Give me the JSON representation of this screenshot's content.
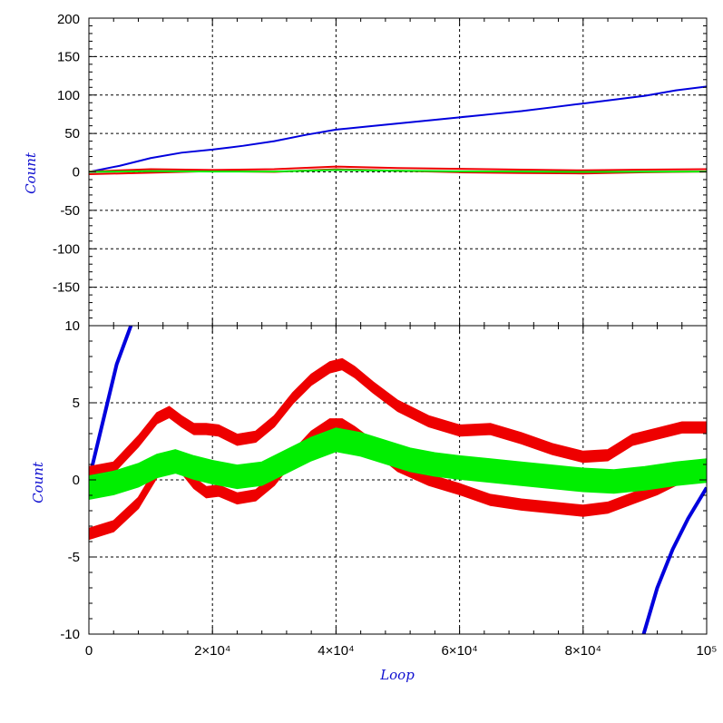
{
  "chart_data": [
    {
      "type": "line",
      "panel": "top",
      "ylabel": "Count",
      "xlabel": "",
      "xlim": [
        0,
        100000
      ],
      "ylim": [
        -200,
        200
      ],
      "yticks": [
        -150,
        -100,
        -50,
        0,
        50,
        100,
        150,
        200
      ],
      "ytick_labels": [
        "-150",
        "-100",
        "-50",
        "0",
        "50",
        "100",
        "150",
        "200"
      ],
      "grid": true,
      "series": [
        {
          "color": "#0000dd",
          "x": [
            0,
            5000,
            10000,
            15000,
            20000,
            25000,
            30000,
            35000,
            40000,
            45000,
            50000,
            55000,
            60000,
            65000,
            70000,
            75000,
            80000,
            85000,
            90000,
            95000,
            100000
          ],
          "y": [
            0,
            8,
            18,
            25,
            29,
            34,
            40,
            48,
            55,
            59,
            63,
            67,
            71,
            75,
            79,
            84,
            89,
            94,
            99,
            106,
            111
          ]
        },
        {
          "color": "#ee0000",
          "x": [
            0,
            10000,
            20000,
            30000,
            40000,
            50000,
            60000,
            70000,
            80000,
            90000,
            100000
          ],
          "y": [
            0.5,
            3.5,
            2.5,
            3.5,
            7,
            5,
            4,
            3,
            2,
            3,
            3.5
          ]
        },
        {
          "color": "#ee0000",
          "x": [
            0,
            10000,
            20000,
            30000,
            40000,
            50000,
            60000,
            70000,
            80000,
            90000,
            100000
          ],
          "y": [
            -3,
            -1,
            1,
            0,
            3.5,
            1.5,
            -0.5,
            -1.5,
            -2,
            -0.5,
            0.5
          ]
        },
        {
          "color": "#00ee00",
          "x": [
            0,
            10000,
            20000,
            30000,
            40000,
            50000,
            60000,
            70000,
            80000,
            90000,
            100000
          ],
          "y": [
            0,
            1,
            0.5,
            0.5,
            2.5,
            1.5,
            0.7,
            0.5,
            0,
            0.3,
            0.5
          ]
        }
      ]
    },
    {
      "type": "line",
      "panel": "bottom",
      "ylabel": "Count",
      "xlabel": "Loop",
      "xlim": [
        0,
        100000
      ],
      "ylim": [
        -10,
        10
      ],
      "yticks": [
        -10,
        -5,
        0,
        5,
        10
      ],
      "ytick_labels": [
        "-10",
        "-5",
        "0",
        "5",
        "10"
      ],
      "xticks": [
        0,
        20000,
        40000,
        60000,
        80000,
        100000
      ],
      "xtick_labels": [
        "0",
        "2×10⁴",
        "4×10⁴",
        "6×10⁴",
        "8×10⁴",
        "10⁵"
      ],
      "grid": true,
      "series": [
        {
          "color": "#0000dd",
          "segments": [
            {
              "x": [
                0,
                1500,
                3000,
                4500,
                6800
              ],
              "y": [
                0,
                2.5,
                5,
                7.5,
                10
              ]
            },
            {
              "x": [
                89800,
                92000,
                94500,
                97000,
                100000
              ],
              "y": [
                -10,
                -7,
                -4.5,
                -2.5,
                -0.5
              ]
            }
          ]
        },
        {
          "color": "#ee0000",
          "band": 0.35,
          "x": [
            0,
            4000,
            8000,
            11000,
            13000,
            15000,
            17000,
            19000,
            21000,
            24000,
            27000,
            30000,
            33000,
            36000,
            39000,
            41000,
            43000,
            46000,
            50000,
            55000,
            60000,
            65000,
            70000,
            75000,
            80000,
            84000,
            88000,
            92000,
            96000,
            100000
          ],
          "y": [
            0.5,
            0.8,
            2.5,
            4,
            4.4,
            3.8,
            3.3,
            3.3,
            3.2,
            2.6,
            2.8,
            3.8,
            5.3,
            6.5,
            7.3,
            7.5,
            7,
            6,
            4.8,
            3.8,
            3.2,
            3.3,
            2.7,
            2,
            1.5,
            1.6,
            2.6,
            3,
            3.4,
            3.4
          ]
        },
        {
          "color": "#ee0000",
          "band": 0.35,
          "x": [
            0,
            4000,
            8000,
            11000,
            13000,
            15000,
            17000,
            19000,
            21000,
            24000,
            27000,
            30000,
            33000,
            36000,
            39000,
            41000,
            43000,
            46000,
            50000,
            55000,
            60000,
            65000,
            70000,
            75000,
            80000,
            84000,
            88000,
            92000,
            96000,
            100000
          ],
          "y": [
            -3.5,
            -3,
            -1.5,
            0.5,
            1.2,
            0.8,
            -0.2,
            -0.8,
            -0.7,
            -1.2,
            -1,
            0,
            1.5,
            2.8,
            3.6,
            3.6,
            3.1,
            2.2,
            0.9,
            0,
            -0.6,
            -1.3,
            -1.6,
            -1.8,
            -2,
            -1.8,
            -1.2,
            -0.6,
            0.2,
            0.5
          ]
        },
        {
          "color": "#00ee00",
          "band": 0.75,
          "x": [
            0,
            4000,
            8000,
            11000,
            14000,
            17000,
            20000,
            24000,
            28000,
            32000,
            36000,
            40000,
            44000,
            48000,
            52000,
            56000,
            60000,
            65000,
            70000,
            75000,
            80000,
            85000,
            90000,
            95000,
            100000
          ],
          "y": [
            -0.5,
            -0.2,
            0.3,
            0.9,
            1.2,
            0.8,
            0.5,
            0.2,
            0.4,
            1.2,
            2,
            2.6,
            2.3,
            1.8,
            1.3,
            1,
            0.8,
            0.6,
            0.4,
            0.2,
            0,
            -0.1,
            0.1,
            0.4,
            0.6
          ]
        }
      ]
    }
  ]
}
